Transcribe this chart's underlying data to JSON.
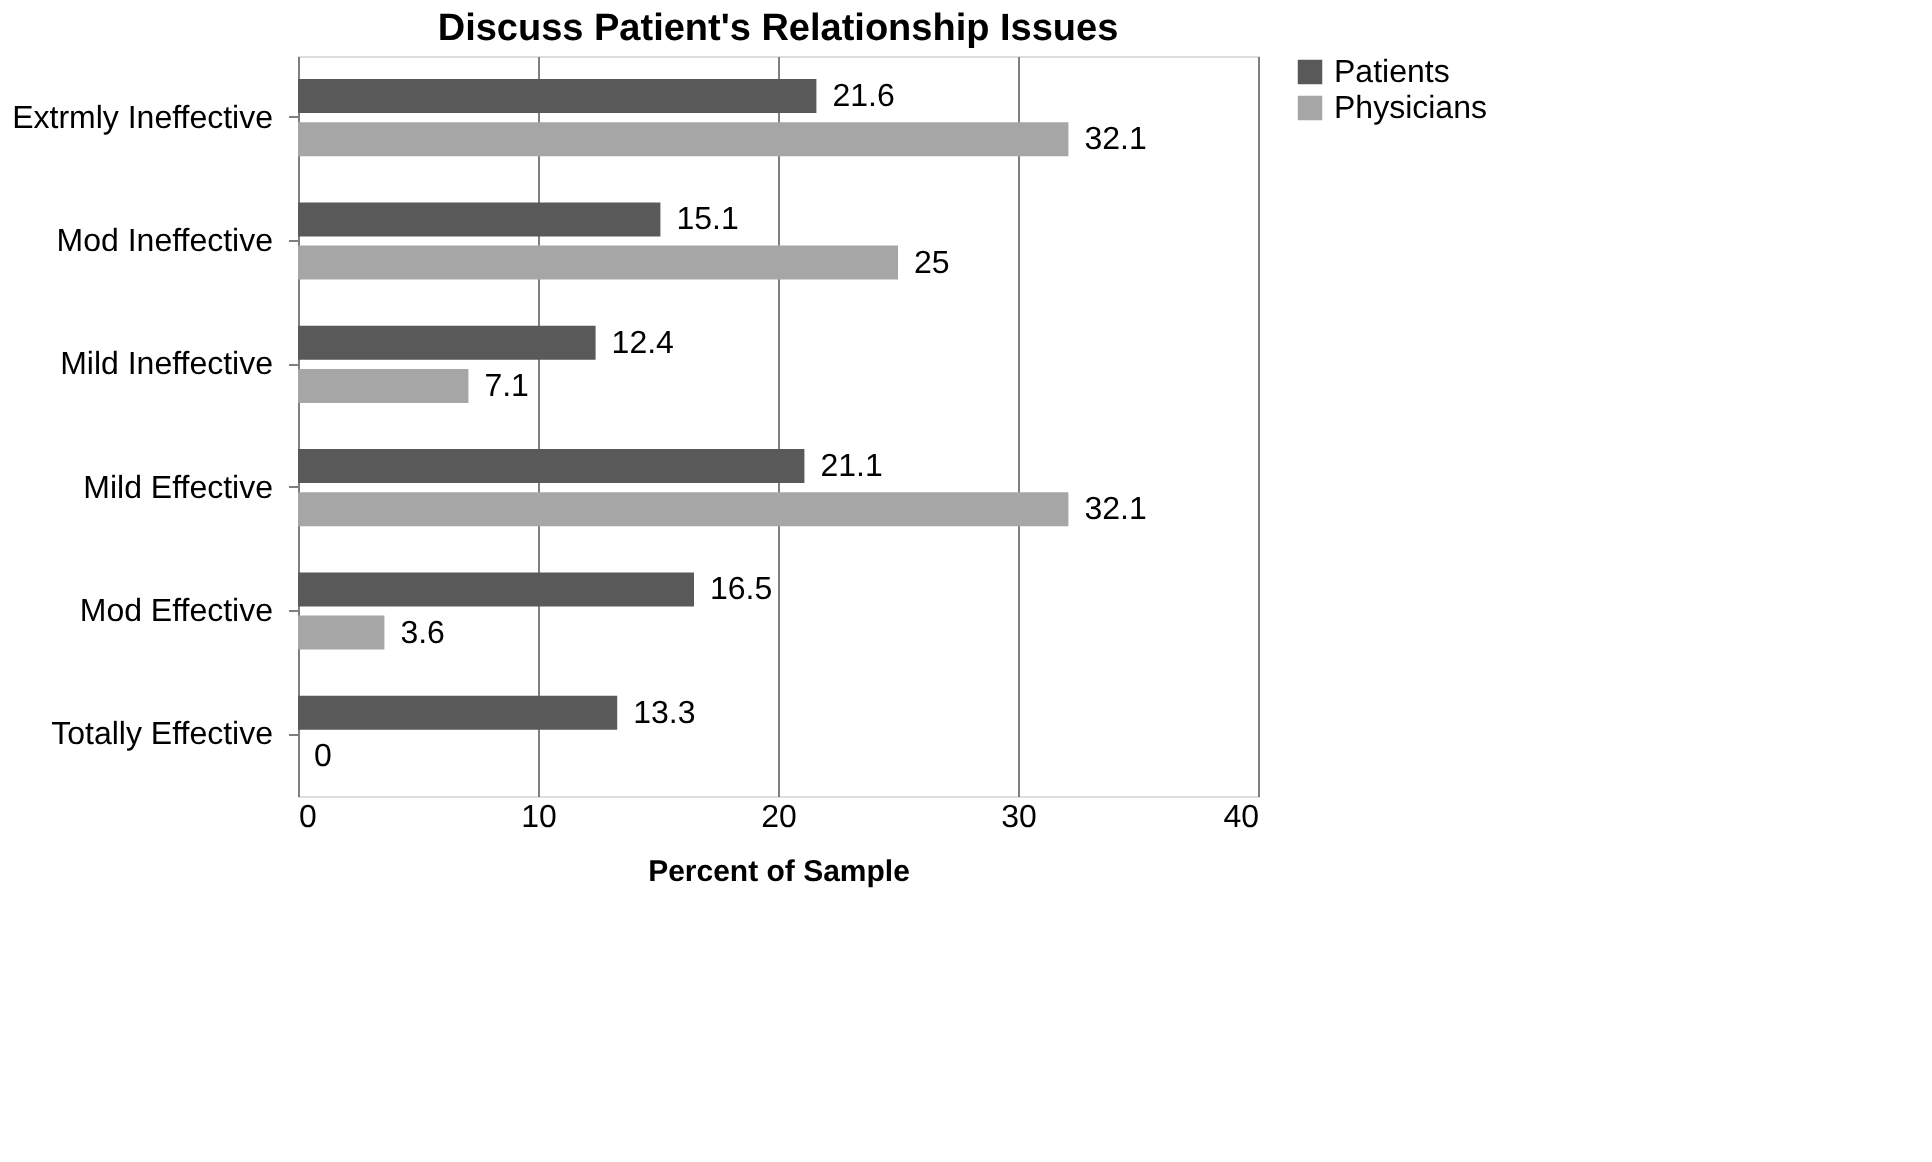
{
  "chart_data": {
    "type": "bar",
    "orientation": "horizontal",
    "title": "Discuss Patient's Relationship Issues",
    "xlabel": "Percent of Sample",
    "categories": [
      "Extrmly Ineffective",
      "Mod Ineffective",
      "Mild Ineffective",
      "Mild Effective",
      "Mod Effective",
      "Totally Effective"
    ],
    "series": [
      {
        "name": "Patients",
        "color": "#595959",
        "values": [
          21.6,
          15.1,
          12.4,
          21.1,
          16.5,
          13.3
        ]
      },
      {
        "name": "Physicians",
        "color": "#a6a6a6",
        "values": [
          32.1,
          25,
          7.1,
          32.1,
          3.6,
          0
        ]
      }
    ],
    "xlim": [
      0,
      40
    ],
    "xticks": [
      0,
      10,
      20,
      30,
      40
    ],
    "grid": "x",
    "legend": "right",
    "data_labels": true
  }
}
